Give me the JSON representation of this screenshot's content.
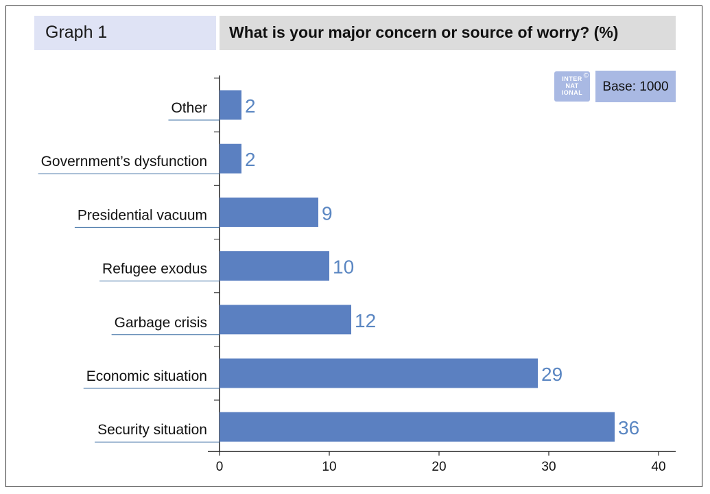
{
  "header": {
    "graph_number": "Graph 1",
    "title": "What is your major concern or source of worry? (%)"
  },
  "logo": {
    "text": "INTER NAT IONAL",
    "mark": "©"
  },
  "base": {
    "label": "Base: 1000"
  },
  "colors": {
    "bar": "#5b80c1",
    "value_label": "#5a86c2",
    "label_underline": "#3d6fa3"
  },
  "chart_data": {
    "type": "bar",
    "orientation": "horizontal",
    "title": "What is your major concern or source of worry? (%)",
    "categories": [
      "Other",
      "Government’s dysfunction",
      "Presidential vacuum",
      "Refugee exodus",
      "Garbage crisis",
      "Economic situation",
      "Security situation"
    ],
    "values": [
      2,
      2,
      9,
      10,
      12,
      29,
      36
    ],
    "xlim": [
      0,
      40
    ],
    "xticks": [
      0,
      10,
      20,
      30,
      40
    ],
    "xlabel": "",
    "ylabel": "",
    "grid": false,
    "legend": "none"
  }
}
